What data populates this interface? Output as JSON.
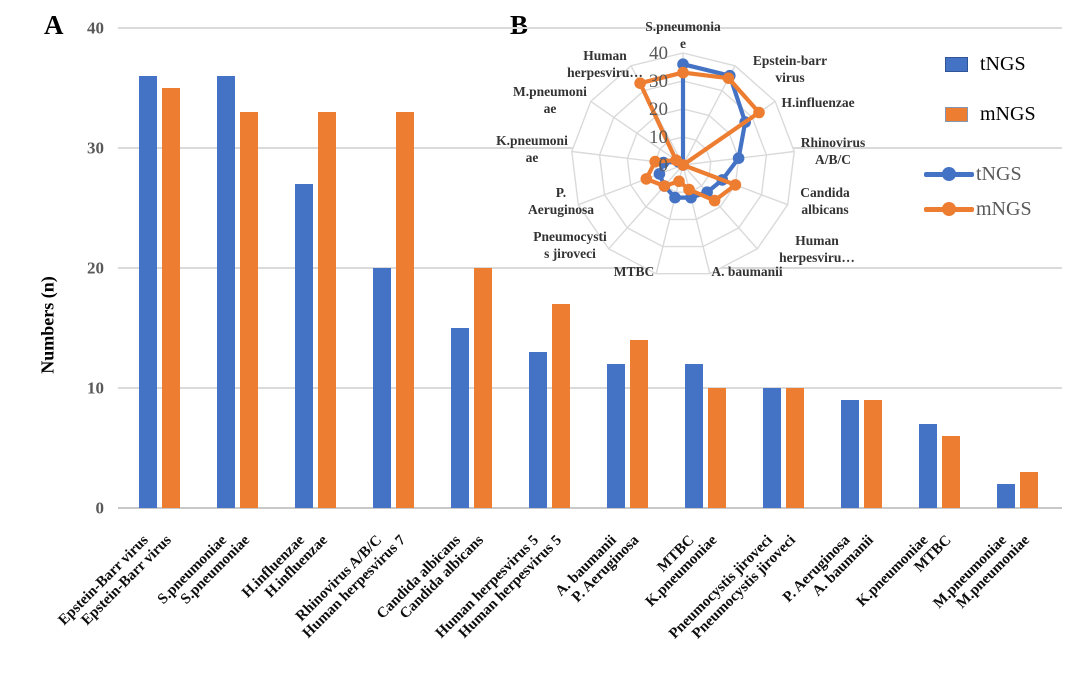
{
  "panels": {
    "a": "A",
    "b": "B"
  },
  "colors": {
    "tNGS": "#4472C4",
    "mNGS": "#ED7D31",
    "grid": "#DADADA",
    "axis_text": "#595959",
    "bar_label_text": "#0D0D0D",
    "radar_label_text": "#333333",
    "tNGS_swatch_border": "#305496",
    "mNGS_swatch_border": "#8497B0"
  },
  "legends": {
    "bar": [
      {
        "label": "tNGS"
      },
      {
        "label": "mNGS"
      }
    ],
    "radar": [
      {
        "label": "tNGS"
      },
      {
        "label": "mNGS"
      }
    ]
  },
  "chart_data": [
    {
      "type": "bar",
      "panel": "A",
      "title": "",
      "xlabel": "",
      "ylabel": "Numbers (n)",
      "ylim": [
        0,
        40
      ],
      "yticks": [
        0,
        10,
        20,
        30,
        40
      ],
      "grid": true,
      "legend_position": "top-right",
      "series_names": [
        "tNGS",
        "mNGS"
      ],
      "bars": [
        {
          "label": "Epstein-Barr virus",
          "series": "tNGS",
          "value": 36
        },
        {
          "label": "Epstein-Barr virus",
          "series": "mNGS",
          "value": 35
        },
        {
          "label": "S.pneumoniae",
          "series": "tNGS",
          "value": 36
        },
        {
          "label": "S.pneumoniae",
          "series": "mNGS",
          "value": 33
        },
        {
          "label": "H.influenzae",
          "series": "tNGS",
          "value": 27
        },
        {
          "label": "H.influenzae",
          "series": "mNGS",
          "value": 33
        },
        {
          "label": "Rhinovirus A/B/C",
          "series": "tNGS",
          "value": 20
        },
        {
          "label": "Human herpesvirus 7",
          "series": "mNGS",
          "value": 33
        },
        {
          "label": "Candida albicans",
          "series": "tNGS",
          "value": 15
        },
        {
          "label": "Candida albicans",
          "series": "mNGS",
          "value": 20
        },
        {
          "label": "Human herpesvirus 5",
          "series": "tNGS",
          "value": 13
        },
        {
          "label": "Human herpesvirus 5",
          "series": "mNGS",
          "value": 17
        },
        {
          "label": "A. baumanii",
          "series": "tNGS",
          "value": 12
        },
        {
          "label": "P. Aeruginosa",
          "series": "mNGS",
          "value": 14
        },
        {
          "label": "MTBC",
          "series": "tNGS",
          "value": 12
        },
        {
          "label": "K.pneumoniae",
          "series": "mNGS",
          "value": 10
        },
        {
          "label": "Pneumocystis jiroveci",
          "series": "tNGS",
          "value": 10
        },
        {
          "label": "Pneumocystis jiroveci",
          "series": "mNGS",
          "value": 10
        },
        {
          "label": "P. Aeruginosa",
          "series": "tNGS",
          "value": 9
        },
        {
          "label": "A. baumanii",
          "series": "mNGS",
          "value": 9
        },
        {
          "label": "K.pneumoniae",
          "series": "tNGS",
          "value": 7
        },
        {
          "label": "MTBC",
          "series": "mNGS",
          "value": 6
        },
        {
          "label": "M.pneumoniae",
          "series": "tNGS",
          "value": 2
        },
        {
          "label": "M.pneumoniae",
          "series": "mNGS",
          "value": 3
        }
      ]
    },
    {
      "type": "radar",
      "panel": "B",
      "rlim": [
        0,
        40
      ],
      "rticks": [
        0,
        10,
        20,
        30,
        40
      ],
      "grid": true,
      "categories": [
        "S.pneumoniae",
        "Epstein-barr virus",
        "H.influenzae",
        "Rhinovirus A/B/C",
        "Candida albicans",
        "Human herpesvirus 5",
        "A. baumanii",
        "MTBC",
        "Pneumocystis jiroveci",
        "P. Aeruginosa",
        "K.pneumoniae",
        "M.pneumoniae",
        "Human herpesvirus 7"
      ],
      "category_display": [
        [
          "S.pneumonia",
          "e"
        ],
        [
          "Epstein-barr",
          "virus"
        ],
        [
          "H.influenzae"
        ],
        [
          "Rhinovirus",
          "A/B/C"
        ],
        [
          "Candida",
          "albicans"
        ],
        [
          "Human",
          "herpesviru…"
        ],
        [
          "A. baumanii"
        ],
        [
          "MTBC"
        ],
        [
          "Pneumocysti",
          "s jiroveci"
        ],
        [
          "P.",
          "Aeruginosa"
        ],
        [
          "K.pneumoni",
          "ae"
        ],
        [
          "M.pneumoni",
          "ae"
        ],
        [
          "Human",
          "herpesviru…"
        ]
      ],
      "series": [
        {
          "name": "tNGS",
          "values": [
            36,
            36,
            27,
            20,
            15,
            13,
            12,
            12,
            10,
            9,
            7,
            2,
            0
          ]
        },
        {
          "name": "mNGS",
          "values": [
            33,
            35,
            33,
            0,
            20,
            17,
            9,
            6,
            10,
            14,
            10,
            3,
            33
          ]
        }
      ]
    }
  ]
}
